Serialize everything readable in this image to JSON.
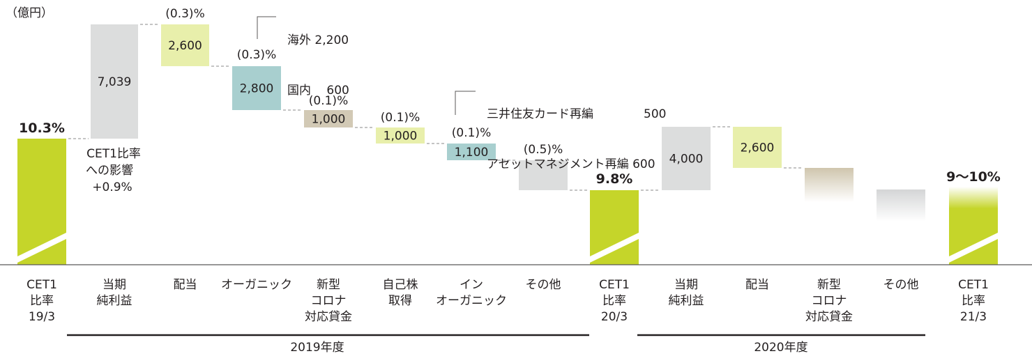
{
  "unit_label": "（億円）",
  "colors": {
    "green": "#c5d52a",
    "gray": "#dcdddd",
    "light_green": "#e8efab",
    "teal": "#a8cfcf",
    "tan": "#d2c9b5",
    "axis": "#595757",
    "text": "#231f20"
  },
  "chart_data": {
    "type": "waterfall",
    "y_axis": "CET1 ratio",
    "groups": [
      "2019年度",
      "2020年度"
    ],
    "categories": [
      {
        "id": "cet1_19",
        "label": [
          "CET1",
          "比率",
          "19/3"
        ]
      },
      {
        "id": "np_19",
        "label": [
          "当期",
          "純利益"
        ]
      },
      {
        "id": "div_19",
        "label": [
          "配当"
        ]
      },
      {
        "id": "org_19",
        "label": [
          "オーガニック"
        ]
      },
      {
        "id": "corona_19",
        "label": [
          "新型",
          "コロナ",
          "対応貸金"
        ]
      },
      {
        "id": "buyback_19",
        "label": [
          "自己株",
          "取得"
        ]
      },
      {
        "id": "inorg_19",
        "label": [
          "イン",
          "オーガニック"
        ]
      },
      {
        "id": "other_19",
        "label": [
          "その他"
        ]
      },
      {
        "id": "cet1_20",
        "label": [
          "CET1",
          "比率",
          "20/3"
        ]
      },
      {
        "id": "np_20",
        "label": [
          "当期",
          "純利益"
        ]
      },
      {
        "id": "div_20",
        "label": [
          "配当"
        ]
      },
      {
        "id": "corona_20",
        "label": [
          "新型",
          "コロナ",
          "対応貸金"
        ]
      },
      {
        "id": "other_20",
        "label": [
          "その他"
        ]
      },
      {
        "id": "cet1_21",
        "label": [
          "CET1",
          "比率",
          "21/3"
        ]
      }
    ],
    "bars": [
      {
        "id": "cet1_19",
        "kind": "total",
        "ratio_label": "10.3%",
        "value_pct": 10.3,
        "color": "green"
      },
      {
        "id": "np_19",
        "kind": "increase",
        "amount_label": "7,039",
        "amount": 7039,
        "ratio_label": "+0.9%",
        "ratio_pct": 0.9,
        "color": "gray"
      },
      {
        "id": "div_19",
        "kind": "decrease",
        "amount_label": "2,600",
        "amount": 2600,
        "ratio_label": "(0.3)%",
        "ratio_pct": -0.3,
        "color": "light_green"
      },
      {
        "id": "org_19",
        "kind": "decrease",
        "amount_label": "2,800",
        "amount": 2800,
        "ratio_label": "(0.3)%",
        "ratio_pct": -0.3,
        "color": "teal"
      },
      {
        "id": "corona_19",
        "kind": "decrease",
        "amount_label": "1,000",
        "amount": 1000,
        "ratio_label": "(0.1)%",
        "ratio_pct": -0.1,
        "color": "tan"
      },
      {
        "id": "buyback_19",
        "kind": "decrease",
        "amount_label": "1,000",
        "amount": 1000,
        "ratio_label": "(0.1)%",
        "ratio_pct": -0.1,
        "color": "light_green"
      },
      {
        "id": "inorg_19",
        "kind": "decrease",
        "amount_label": "1,100",
        "amount": 1100,
        "ratio_label": "(0.1)%",
        "ratio_pct": -0.1,
        "color": "teal"
      },
      {
        "id": "other_19",
        "kind": "decrease",
        "amount_label": "",
        "ratio_label": "(0.5)%",
        "ratio_pct": -0.5,
        "color": "gray"
      },
      {
        "id": "cet1_20",
        "kind": "total",
        "ratio_label": "9.8%",
        "value_pct": 9.8,
        "color": "green"
      },
      {
        "id": "np_20",
        "kind": "increase",
        "amount_label": "4,000",
        "amount": 4000,
        "color": "gray"
      },
      {
        "id": "div_20",
        "kind": "decrease",
        "amount_label": "2,600",
        "amount": 2600,
        "color": "light_green"
      },
      {
        "id": "corona_20",
        "kind": "decrease",
        "amount_label": "",
        "color": "tan",
        "faded": true
      },
      {
        "id": "other_20",
        "kind": "decrease",
        "amount_label": "",
        "color": "gray",
        "faded": true
      },
      {
        "id": "cet1_21",
        "kind": "total",
        "ratio_label": "9〜10%",
        "value_pct_range": [
          9,
          10
        ],
        "color": "green",
        "faded": true
      }
    ],
    "annotations": {
      "impact_label": [
        "CET1比率",
        "への影響"
      ],
      "organic_breakdown": [
        {
          "label": "海外",
          "value": "2,200"
        },
        {
          "label": "国内",
          "value": "600"
        }
      ],
      "inorganic_breakdown": [
        {
          "label": "三井住友カード再編",
          "value": "500"
        },
        {
          "label": "アセットマネジメント再編",
          "value": "600"
        }
      ]
    }
  }
}
